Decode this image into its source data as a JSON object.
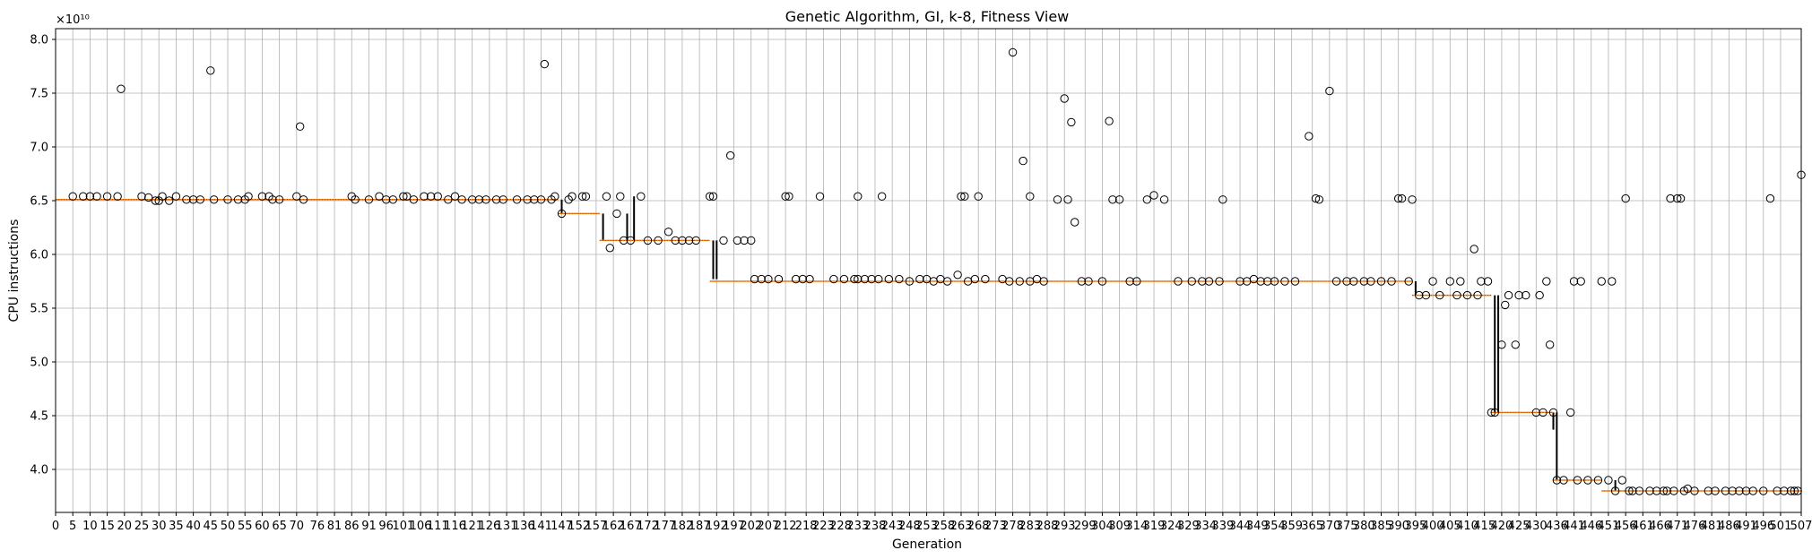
{
  "chart_data": {
    "type": "box",
    "title": "Genetic Algorithm, GI, k-8, Fitness View",
    "xlabel": "Generation",
    "ylabel": "CPU instructions",
    "y_offset_label": "×10¹⁰",
    "y_scale": 10000000000,
    "xlim": [
      0,
      507
    ],
    "ylim": [
      3.6,
      8.1
    ],
    "grid": true,
    "x_ticks": [
      "0",
      "5",
      "10",
      "15",
      "20",
      "25",
      "30",
      "35",
      "40",
      "45",
      "50",
      "55",
      "60",
      "65",
      "70",
      "76",
      "81",
      "86",
      "91",
      "96",
      "101",
      "106",
      "111",
      "116",
      "121",
      "126",
      "131",
      "136",
      "141",
      "147",
      "152",
      "157",
      "162",
      "167",
      "172",
      "177",
      "182",
      "187",
      "192",
      "197",
      "202",
      "207",
      "212",
      "218",
      "223",
      "228",
      "233",
      "238",
      "243",
      "248",
      "253",
      "258",
      "263",
      "268",
      "273",
      "278",
      "283",
      "288",
      "293",
      "299",
      "304",
      "309",
      "314",
      "319",
      "324",
      "329",
      "334",
      "339",
      "344",
      "349",
      "354",
      "359",
      "365",
      "370",
      "375",
      "380",
      "385",
      "390",
      "395",
      "400",
      "405",
      "410",
      "415",
      "420",
      "425",
      "430",
      "436",
      "441",
      "446",
      "451",
      "456",
      "461",
      "466",
      "471",
      "476",
      "481",
      "486",
      "491",
      "496",
      "501",
      "507"
    ],
    "y_ticks": [
      "4.0",
      "4.5",
      "5.0",
      "5.5",
      "6.0",
      "6.5",
      "7.0",
      "7.5",
      "8.0"
    ],
    "median_steps": [
      {
        "start": 0,
        "end": 146,
        "value": 6.51
      },
      {
        "start": 146,
        "end": 158,
        "value": 6.38
      },
      {
        "start": 158,
        "end": 190,
        "value": 6.13
      },
      {
        "start": 190,
        "end": 394,
        "value": 5.75
      },
      {
        "start": 394,
        "end": 417,
        "value": 5.62
      },
      {
        "start": 417,
        "end": 435,
        "value": 4.53
      },
      {
        "start": 435,
        "end": 449,
        "value": 3.9
      },
      {
        "start": 449,
        "end": 507,
        "value": 3.8
      }
    ],
    "outliers": [
      [
        5,
        6.54
      ],
      [
        8,
        6.54
      ],
      [
        10,
        6.54
      ],
      [
        12,
        6.54
      ],
      [
        15,
        6.54
      ],
      [
        18,
        6.54
      ],
      [
        19,
        7.54
      ],
      [
        25,
        6.54
      ],
      [
        27,
        6.53
      ],
      [
        29,
        6.5
      ],
      [
        30,
        6.5
      ],
      [
        31,
        6.54
      ],
      [
        33,
        6.5
      ],
      [
        35,
        6.54
      ],
      [
        38,
        6.51
      ],
      [
        40,
        6.51
      ],
      [
        42,
        6.51
      ],
      [
        45,
        7.71
      ],
      [
        46,
        6.51
      ],
      [
        50,
        6.51
      ],
      [
        53,
        6.51
      ],
      [
        55,
        6.51
      ],
      [
        56,
        6.54
      ],
      [
        60,
        6.54
      ],
      [
        62,
        6.54
      ],
      [
        63,
        6.51
      ],
      [
        65,
        6.51
      ],
      [
        70,
        6.54
      ],
      [
        71,
        7.19
      ],
      [
        72,
        6.51
      ],
      [
        86,
        6.54
      ],
      [
        87,
        6.51
      ],
      [
        91,
        6.51
      ],
      [
        94,
        6.54
      ],
      [
        96,
        6.51
      ],
      [
        98,
        6.51
      ],
      [
        101,
        6.54
      ],
      [
        102,
        6.54
      ],
      [
        104,
        6.51
      ],
      [
        107,
        6.54
      ],
      [
        109,
        6.54
      ],
      [
        111,
        6.54
      ],
      [
        114,
        6.51
      ],
      [
        116,
        6.54
      ],
      [
        118,
        6.51
      ],
      [
        121,
        6.51
      ],
      [
        123,
        6.51
      ],
      [
        125,
        6.51
      ],
      [
        128,
        6.51
      ],
      [
        130,
        6.51
      ],
      [
        134,
        6.51
      ],
      [
        137,
        6.51
      ],
      [
        139,
        6.51
      ],
      [
        141,
        6.51
      ],
      [
        142,
        7.77
      ],
      [
        144,
        6.51
      ],
      [
        145,
        6.54
      ],
      [
        147,
        6.38
      ],
      [
        149,
        6.51
      ],
      [
        150,
        6.54
      ],
      [
        153,
        6.54
      ],
      [
        154,
        6.54
      ],
      [
        160,
        6.54
      ],
      [
        161,
        6.06
      ],
      [
        163,
        6.38
      ],
      [
        164,
        6.54
      ],
      [
        165,
        6.13
      ],
      [
        167,
        6.13
      ],
      [
        170,
        6.54
      ],
      [
        172,
        6.13
      ],
      [
        175,
        6.13
      ],
      [
        178,
        6.21
      ],
      [
        180,
        6.13
      ],
      [
        182,
        6.13
      ],
      [
        184,
        6.13
      ],
      [
        186,
        6.13
      ],
      [
        190,
        6.54
      ],
      [
        191,
        6.54
      ],
      [
        194,
        6.13
      ],
      [
        196,
        6.92
      ],
      [
        198,
        6.13
      ],
      [
        200,
        6.13
      ],
      [
        202,
        6.13
      ],
      [
        203,
        5.77
      ],
      [
        205,
        5.77
      ],
      [
        207,
        5.77
      ],
      [
        210,
        5.77
      ],
      [
        212,
        6.54
      ],
      [
        213,
        6.54
      ],
      [
        215,
        5.77
      ],
      [
        217,
        5.77
      ],
      [
        219,
        5.77
      ],
      [
        222,
        6.54
      ],
      [
        226,
        5.77
      ],
      [
        229,
        5.77
      ],
      [
        232,
        5.77
      ],
      [
        233,
        6.54
      ],
      [
        233,
        5.77
      ],
      [
        235,
        5.77
      ],
      [
        237,
        5.77
      ],
      [
        239,
        5.77
      ],
      [
        240,
        6.54
      ],
      [
        242,
        5.77
      ],
      [
        245,
        5.77
      ],
      [
        248,
        5.75
      ],
      [
        251,
        5.77
      ],
      [
        253,
        5.77
      ],
      [
        255,
        5.75
      ],
      [
        257,
        5.77
      ],
      [
        259,
        5.75
      ],
      [
        262,
        5.81
      ],
      [
        263,
        6.54
      ],
      [
        264,
        6.54
      ],
      [
        265,
        5.75
      ],
      [
        267,
        5.77
      ],
      [
        268,
        6.54
      ],
      [
        270,
        5.77
      ],
      [
        275,
        5.77
      ],
      [
        277,
        5.75
      ],
      [
        278,
        7.88
      ],
      [
        280,
        5.75
      ],
      [
        281,
        6.87
      ],
      [
        283,
        6.54
      ],
      [
        283,
        5.75
      ],
      [
        285,
        5.77
      ],
      [
        287,
        5.75
      ],
      [
        291,
        6.51
      ],
      [
        293,
        7.45
      ],
      [
        294,
        6.51
      ],
      [
        295,
        7.23
      ],
      [
        296,
        6.3
      ],
      [
        298,
        5.75
      ],
      [
        300,
        5.75
      ],
      [
        304,
        5.75
      ],
      [
        306,
        7.24
      ],
      [
        307,
        6.51
      ],
      [
        309,
        6.51
      ],
      [
        312,
        5.75
      ],
      [
        314,
        5.75
      ],
      [
        317,
        6.51
      ],
      [
        319,
        6.55
      ],
      [
        322,
        6.51
      ],
      [
        326,
        5.75
      ],
      [
        330,
        5.75
      ],
      [
        333,
        5.75
      ],
      [
        335,
        5.75
      ],
      [
        338,
        5.75
      ],
      [
        339,
        6.51
      ],
      [
        344,
        5.75
      ],
      [
        346,
        5.75
      ],
      [
        348,
        5.77
      ],
      [
        350,
        5.75
      ],
      [
        352,
        5.75
      ],
      [
        354,
        5.75
      ],
      [
        357,
        5.75
      ],
      [
        360,
        5.75
      ],
      [
        364,
        7.1
      ],
      [
        366,
        6.52
      ],
      [
        367,
        6.51
      ],
      [
        370,
        7.52
      ],
      [
        372,
        5.75
      ],
      [
        375,
        5.75
      ],
      [
        377,
        5.75
      ],
      [
        380,
        5.75
      ],
      [
        382,
        5.75
      ],
      [
        385,
        5.75
      ],
      [
        388,
        5.75
      ],
      [
        390,
        6.52
      ],
      [
        391,
        6.52
      ],
      [
        394,
        6.51
      ],
      [
        393,
        5.75
      ],
      [
        396,
        5.62
      ],
      [
        398,
        5.62
      ],
      [
        400,
        5.75
      ],
      [
        402,
        5.62
      ],
      [
        405,
        5.75
      ],
      [
        407,
        5.62
      ],
      [
        408,
        5.75
      ],
      [
        410,
        5.62
      ],
      [
        412,
        6.05
      ],
      [
        413,
        5.62
      ],
      [
        414,
        5.75
      ],
      [
        416,
        5.75
      ],
      [
        417,
        4.53
      ],
      [
        418,
        4.53
      ],
      [
        420,
        5.16
      ],
      [
        421,
        5.53
      ],
      [
        422,
        5.62
      ],
      [
        424,
        5.16
      ],
      [
        425,
        5.62
      ],
      [
        427,
        5.62
      ],
      [
        430,
        4.53
      ],
      [
        431,
        5.62
      ],
      [
        432,
        4.53
      ],
      [
        433,
        5.75
      ],
      [
        434,
        5.16
      ],
      [
        435,
        4.53
      ],
      [
        436,
        3.9
      ],
      [
        438,
        3.9
      ],
      [
        440,
        4.53
      ],
      [
        441,
        5.75
      ],
      [
        442,
        3.9
      ],
      [
        443,
        5.75
      ],
      [
        445,
        3.9
      ],
      [
        448,
        3.9
      ],
      [
        449,
        5.75
      ],
      [
        451,
        3.9
      ],
      [
        452,
        5.75
      ],
      [
        453,
        3.8
      ],
      [
        455,
        3.9
      ],
      [
        456,
        6.52
      ],
      [
        457,
        3.8
      ],
      [
        458,
        3.8
      ],
      [
        460,
        3.8
      ],
      [
        463,
        3.8
      ],
      [
        465,
        3.8
      ],
      [
        467,
        3.8
      ],
      [
        468,
        3.8
      ],
      [
        469,
        6.52
      ],
      [
        470,
        3.8
      ],
      [
        471,
        6.52
      ],
      [
        472,
        6.52
      ],
      [
        473,
        3.8
      ],
      [
        474,
        3.82
      ],
      [
        476,
        3.8
      ],
      [
        480,
        3.8
      ],
      [
        482,
        3.8
      ],
      [
        485,
        3.8
      ],
      [
        487,
        3.8
      ],
      [
        489,
        3.8
      ],
      [
        491,
        3.8
      ],
      [
        493,
        3.8
      ],
      [
        496,
        3.8
      ],
      [
        498,
        6.52
      ],
      [
        500,
        3.8
      ],
      [
        502,
        3.8
      ],
      [
        504,
        3.8
      ],
      [
        505,
        3.8
      ],
      [
        506,
        3.8
      ],
      [
        507,
        6.74
      ]
    ],
    "whiskers": [
      [
        147,
        6.38,
        6.51
      ],
      [
        159,
        6.13,
        6.38
      ],
      [
        166,
        6.13,
        6.38
      ],
      [
        168,
        6.13,
        6.54
      ],
      [
        191,
        5.77,
        6.13
      ],
      [
        192,
        5.77,
        6.13
      ],
      [
        395,
        5.62,
        5.75
      ],
      [
        418,
        4.53,
        5.62
      ],
      [
        419,
        4.53,
        5.62
      ],
      [
        436,
        3.9,
        4.53
      ],
      [
        435,
        4.37,
        4.53
      ],
      [
        453,
        3.8,
        3.9
      ]
    ]
  }
}
